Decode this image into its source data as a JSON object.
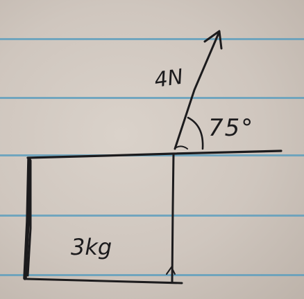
{
  "diagram": {
    "force_label": "4N",
    "angle_label": "75°",
    "mass_label": "3kg"
  },
  "colors": {
    "paper": "#d4ccc4",
    "rule_line": "#5f9fbd",
    "ink": "#1c1b1d"
  }
}
